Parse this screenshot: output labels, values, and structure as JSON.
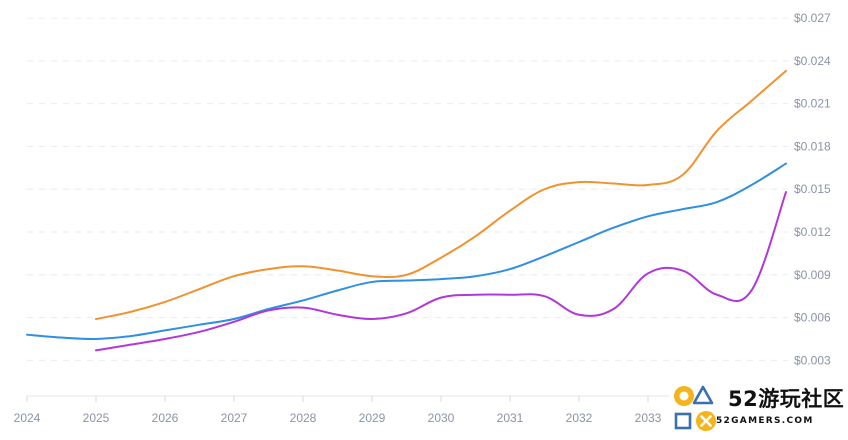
{
  "chart_data": {
    "type": "line",
    "title": "",
    "xlabel": "",
    "ylabel": "",
    "x_tick_labels": [
      "2024",
      "2025",
      "2026",
      "2027",
      "2028",
      "2029",
      "2030",
      "2031",
      "2032",
      "2033"
    ],
    "y_tick_labels": [
      "$0.003",
      "$0.006",
      "$0.009",
      "$0.012",
      "$0.015",
      "$0.018",
      "$0.021",
      "$0.024",
      "$0.027"
    ],
    "y_axis_position": "right",
    "ylim": [
      0.0005,
      0.0275
    ],
    "xlim": [
      2024,
      2035
    ],
    "grid": "horizontal-dashed",
    "legend": "none",
    "series": [
      {
        "color": "#f0922e",
        "x": [
          2025,
          2025.5,
          2026,
          2026.5,
          2027,
          2027.5,
          2028,
          2028.5,
          2029,
          2029.5,
          2030,
          2030.5,
          2031,
          2031.5,
          2032,
          2032.5,
          2033,
          2033.5,
          2034,
          2034.5,
          2035
        ],
        "values": [
          0.0059,
          0.0064,
          0.0071,
          0.008,
          0.0089,
          0.0094,
          0.0096,
          0.0093,
          0.0089,
          0.009,
          0.0102,
          0.0117,
          0.0135,
          0.015,
          0.0155,
          0.0154,
          0.0153,
          0.016,
          0.0191,
          0.0212,
          0.0233
        ]
      },
      {
        "color": "#2f8fe0",
        "x": [
          2024,
          2024.5,
          2025,
          2025.5,
          2026,
          2026.5,
          2027,
          2027.5,
          2028,
          2028.5,
          2029,
          2029.5,
          2030,
          2030.5,
          2031,
          2031.5,
          2032,
          2032.5,
          2033,
          2033.5,
          2034,
          2034.5,
          2035
        ],
        "values": [
          0.0048,
          0.0046,
          0.0045,
          0.0047,
          0.0051,
          0.0055,
          0.0059,
          0.0066,
          0.0072,
          0.0079,
          0.0085,
          0.0086,
          0.0087,
          0.0089,
          0.0094,
          0.0103,
          0.0113,
          0.0123,
          0.0131,
          0.0136,
          0.0141,
          0.0153,
          0.0168
        ]
      },
      {
        "color": "#b138d8",
        "x": [
          2025,
          2025.5,
          2026,
          2026.5,
          2027,
          2027.5,
          2028,
          2028.5,
          2029,
          2029.5,
          2030,
          2030.5,
          2031,
          2031.5,
          2032,
          2032.5,
          2033,
          2033.5,
          2034,
          2034.5,
          2035
        ],
        "values": [
          0.0037,
          0.0041,
          0.0045,
          0.005,
          0.0057,
          0.0065,
          0.0067,
          0.0062,
          0.0059,
          0.0063,
          0.0074,
          0.0076,
          0.0076,
          0.0075,
          0.0062,
          0.0066,
          0.0091,
          0.0093,
          0.0076,
          0.0079,
          0.0148
        ]
      }
    ]
  },
  "watermark": {
    "title": "52游玩社区",
    "subtitle": "52GAMERS.COM"
  }
}
